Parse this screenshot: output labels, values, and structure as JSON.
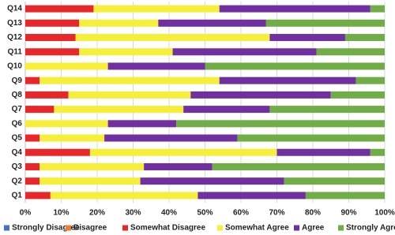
{
  "chart_data": {
    "type": "stacked-bar-horizontal",
    "categories": [
      "Q1",
      "Q2",
      "Q3",
      "Q4",
      "Q5",
      "Q6",
      "Q7",
      "Q8",
      "Q9",
      "Q10",
      "Q11",
      "Q12",
      "Q13",
      "Q14"
    ],
    "series": [
      {
        "name": "Strongly Disagree",
        "color": "#4472c4",
        "values": [
          0,
          0,
          0,
          0,
          0,
          0,
          0,
          0,
          0,
          0,
          0,
          0,
          0,
          0
        ]
      },
      {
        "name": "Disagree",
        "color": "#ed7d31",
        "values": [
          0,
          0,
          0,
          0,
          0,
          0,
          0,
          0,
          0,
          0,
          0,
          0,
          0,
          0
        ]
      },
      {
        "name": "Somewhat Disagree",
        "color": "#e8272a",
        "values": [
          7,
          4,
          4,
          18,
          4,
          0,
          8,
          12,
          4,
          0,
          15,
          14,
          15,
          19
        ]
      },
      {
        "name": "Somewhat Agree",
        "color": "#f5ef3a",
        "values": [
          41,
          28,
          29,
          52,
          18,
          23,
          36,
          34,
          50,
          23,
          26,
          54,
          22,
          35
        ]
      },
      {
        "name": "Agree",
        "color": "#7030a0",
        "values": [
          30,
          40,
          19,
          26,
          37,
          19,
          24,
          39,
          38,
          27,
          40,
          21,
          30,
          42
        ]
      },
      {
        "name": "Strongly Agree",
        "color": "#70ad47",
        "values": [
          22,
          28,
          48,
          4,
          41,
          58,
          32,
          15,
          8,
          50,
          19,
          11,
          33,
          4
        ]
      }
    ],
    "xlim": [
      0,
      100
    ],
    "xticks": [
      {
        "value": 0,
        "label": "0%"
      },
      {
        "value": 10,
        "label": "10%"
      },
      {
        "value": 20,
        "label": "20%"
      },
      {
        "value": 30,
        "label": "30%"
      },
      {
        "value": 40,
        "label": "40%"
      },
      {
        "value": 50,
        "label": "50%"
      },
      {
        "value": 60,
        "label": "60%"
      },
      {
        "value": 70,
        "label": "70%"
      },
      {
        "value": 80,
        "label": "80%"
      },
      {
        "value": 90,
        "label": "90%"
      },
      {
        "value": 100,
        "label": "100%"
      }
    ],
    "grid": true,
    "legend": "bottom"
  }
}
